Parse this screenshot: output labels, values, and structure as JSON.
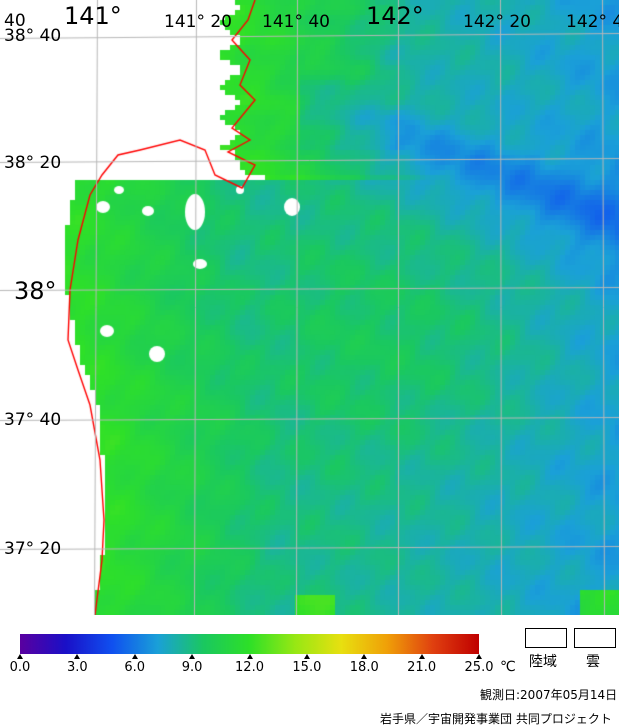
{
  "map": {
    "lon_labels": {
      "lon_40": "40",
      "lon_141": "141°",
      "lon_141_20": "141° 20",
      "lon_141_40": "141° 40",
      "lon_142": "142°",
      "lon_142_20": "142° 20",
      "lon_142_40": "142° 4"
    },
    "lat_labels": {
      "lat_38_40": "38° 40",
      "lat_38_20": "38° 20",
      "lat_38": "38°",
      "lat_37_40": "37° 40",
      "lat_37_20": "37° 20"
    },
    "colors": {
      "coastline": "#ff0000",
      "grid": "#b8b8b8",
      "land": "#ffffff",
      "cloud": "#ffffff"
    }
  },
  "colorbar": {
    "ticks": [
      "0.0",
      "3.0",
      "6.0",
      "9.0",
      "12.0",
      "15.0",
      "18.0",
      "21.0",
      "25.0"
    ],
    "unit": "℃",
    "stops": [
      "#5a00a0",
      "#1a10c8",
      "#1050f0",
      "#1aa0d8",
      "#1ac860",
      "#2ee028",
      "#98e814",
      "#e8e010",
      "#f0a008",
      "#e04010",
      "#c00000"
    ]
  },
  "legend": {
    "land_label": "陸域",
    "cloud_label": "雲"
  },
  "footer": {
    "observation_date": "観測日:2007年05月14日",
    "credit": "岩手県／宇宙開発事業団 共同プロジェクト"
  }
}
